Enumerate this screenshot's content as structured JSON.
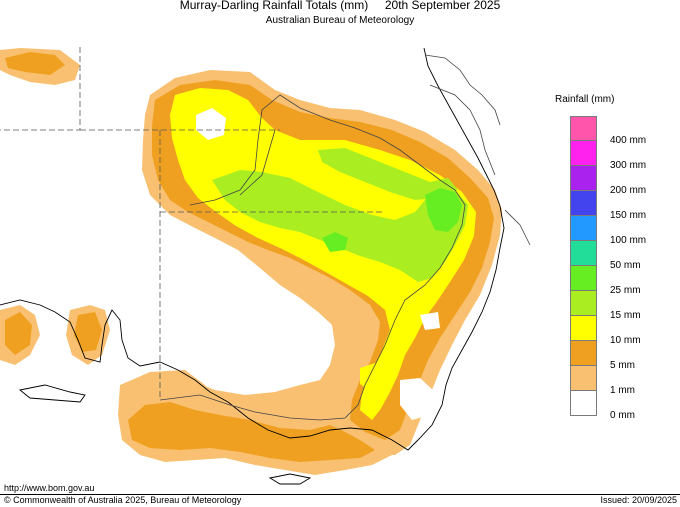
{
  "header": {
    "title": "Murray-Darling Rainfall Totals (mm)     20th September 2025",
    "subtitle": "Australian Bureau of Meteorology"
  },
  "legend": {
    "title": "Rainfall (mm)",
    "items": [
      {
        "label": "400 mm",
        "color": "#ff55aa"
      },
      {
        "label": "300 mm",
        "color": "#ff22ee"
      },
      {
        "label": "200 mm",
        "color": "#aa22ee"
      },
      {
        "label": "150 mm",
        "color": "#4444ee"
      },
      {
        "label": "100 mm",
        "color": "#2299ff"
      },
      {
        "label": "50 mm",
        "color": "#22dd99"
      },
      {
        "label": "25 mm",
        "color": "#66ee22"
      },
      {
        "label": "15 mm",
        "color": "#aaee22"
      },
      {
        "label": "10 mm",
        "color": "#ffff00"
      },
      {
        "label": "5 mm",
        "color": "#f0a020"
      },
      {
        "label": "1 mm",
        "color": "#f8c070"
      },
      {
        "label": "0 mm",
        "color": "#ffffff"
      }
    ]
  },
  "footer": {
    "url": "http://www.bom.gov.au",
    "copyright": "© Commonwealth of Australia 2025, Bureau of Meteorology",
    "issued": "Issued: 20/09/2025"
  },
  "colors": {
    "coast": "#000000",
    "state_border": "#555555",
    "basin_outline": "#555555"
  }
}
